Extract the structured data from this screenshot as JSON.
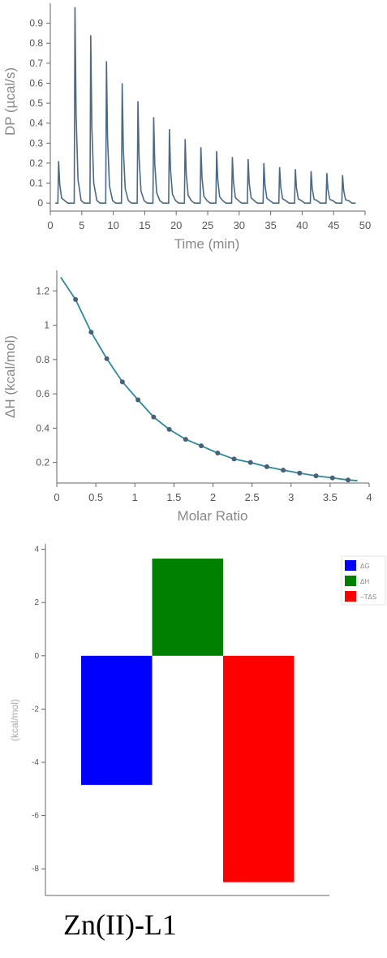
{
  "caption": "Zn(II)-L1",
  "chart_data": [
    {
      "type": "line",
      "xlabel": "Time (min)",
      "ylabel": "DP (µcal/s)",
      "xlim": [
        0,
        50
      ],
      "ylim": [
        -0.04,
        1.0
      ],
      "xticks": [
        0,
        5,
        10,
        15,
        20,
        25,
        30,
        35,
        40,
        45,
        50
      ],
      "yticks": [
        0,
        0.1,
        0.2,
        0.3,
        0.4,
        0.5,
        0.6,
        0.7,
        0.8,
        0.9
      ],
      "colors": {
        "line": "#4a6a86"
      },
      "series": [
        {
          "injection_times": [
            1.2,
            3.8,
            6.3,
            8.8,
            11.3,
            13.8,
            16.3,
            18.8,
            21.3,
            23.8,
            26.3,
            28.8,
            31.3,
            33.8,
            36.3,
            38.8,
            41.3,
            43.8,
            46.3
          ],
          "peak_heights": [
            0.21,
            0.98,
            0.84,
            0.71,
            0.6,
            0.51,
            0.43,
            0.37,
            0.32,
            0.28,
            0.26,
            0.23,
            0.22,
            0.2,
            0.18,
            0.17,
            0.16,
            0.15,
            0.14
          ],
          "x_end": 48.5
        }
      ]
    },
    {
      "type": "scatter",
      "xlabel": "Molar Ratio",
      "ylabel": "ΔH (kcal/mol)",
      "xlim": [
        0,
        4
      ],
      "ylim": [
        0.08,
        1.32
      ],
      "xticks": [
        0,
        0.5,
        1,
        1.5,
        2,
        2.5,
        3,
        3.5,
        4
      ],
      "yticks": [
        0.2,
        0.4,
        0.6,
        0.8,
        1,
        1.2
      ],
      "colors": {
        "fit": "#2b8a9a",
        "points": "#4a5f78"
      },
      "points": {
        "x": [
          0.24,
          0.44,
          0.64,
          0.84,
          1.04,
          1.24,
          1.44,
          1.65,
          1.85,
          2.06,
          2.27,
          2.48,
          2.69,
          2.9,
          3.11,
          3.32,
          3.53,
          3.73
        ],
        "y": [
          1.15,
          0.96,
          0.805,
          0.67,
          0.565,
          0.465,
          0.393,
          0.335,
          0.297,
          0.255,
          0.22,
          0.2,
          0.175,
          0.155,
          0.138,
          0.122,
          0.11,
          0.098
        ]
      },
      "fit": {
        "x": [
          0.05,
          0.24,
          0.44,
          0.64,
          0.84,
          1.04,
          1.24,
          1.44,
          1.65,
          1.85,
          2.06,
          2.27,
          2.48,
          2.69,
          2.9,
          3.11,
          3.32,
          3.53,
          3.73,
          3.85
        ],
        "y": [
          1.28,
          1.15,
          0.96,
          0.805,
          0.67,
          0.565,
          0.465,
          0.393,
          0.335,
          0.297,
          0.255,
          0.22,
          0.2,
          0.175,
          0.155,
          0.138,
          0.122,
          0.11,
          0.098,
          0.094
        ]
      }
    },
    {
      "type": "bar",
      "ylabel": "(kcal/mol)",
      "ylim": [
        -9.0,
        4.2
      ],
      "yticks": [
        4,
        2,
        0,
        -2,
        -4,
        -6,
        -8
      ],
      "categories": [
        "ΔG",
        "ΔH",
        "−TΔS"
      ],
      "values": [
        -4.85,
        3.65,
        -8.5
      ],
      "colors": [
        "#0000ff",
        "#008000",
        "#ff0000"
      ],
      "legend": {
        "position": "top-right",
        "entries": [
          "ΔG",
          "ΔH",
          "−TΔS"
        ]
      }
    }
  ]
}
